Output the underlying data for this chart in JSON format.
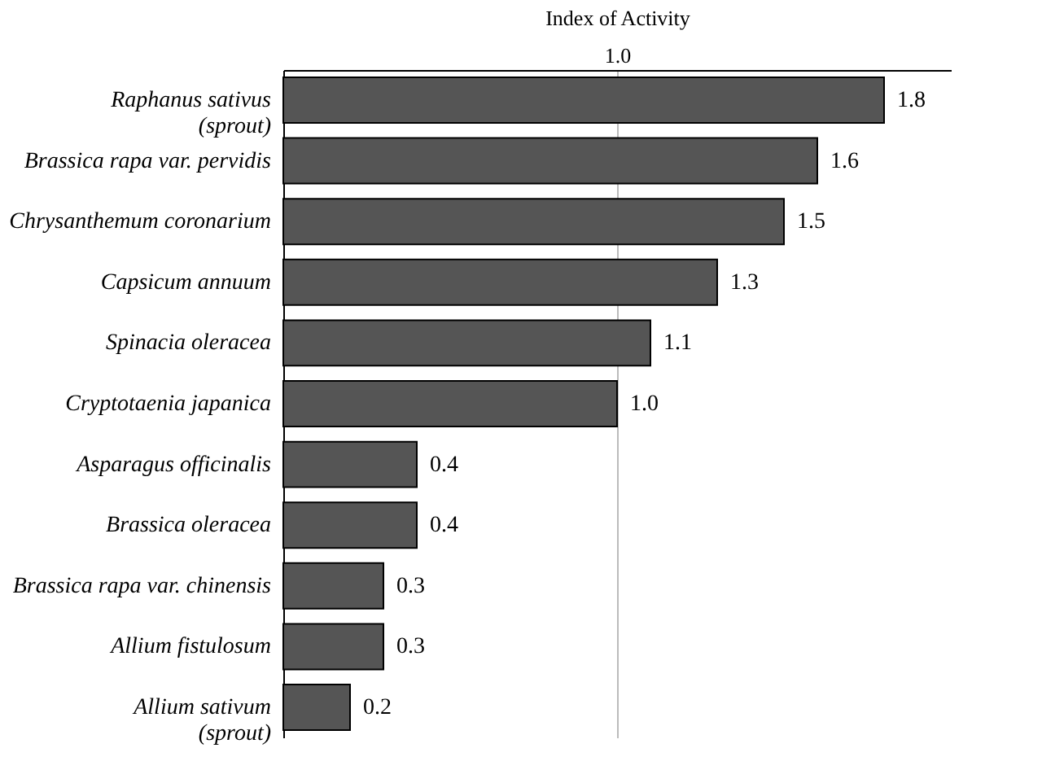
{
  "chart_data": {
    "type": "bar",
    "orientation": "horizontal",
    "xlabel": "Index of Activity",
    "categories": [
      "Raphanus sativus\n(sprout)",
      "Brassica rapa var. pervidis",
      "Chrysanthemum coronarium",
      "Capsicum annuum",
      "Spinacia oleracea",
      "Cryptotaenia japanica",
      "Asparagus officinalis",
      "Brassica oleracea",
      "Brassica rapa var. chinensis",
      "Allium fistulosum",
      "Allium sativum\n(sprout)"
    ],
    "values": [
      1.8,
      1.6,
      1.5,
      1.3,
      1.1,
      1.0,
      0.4,
      0.4,
      0.3,
      0.3,
      0.2
    ],
    "color": "#555555",
    "xlim": [
      0,
      2.0
    ],
    "xticks": [
      {
        "value": 1.0,
        "label": "1.0"
      }
    ],
    "value_labels": [
      "1.8",
      "1.6",
      "1.5",
      "1.3",
      "1.1",
      "1.0",
      "0.4",
      "0.4",
      "0.3",
      "0.3",
      "0.2"
    ],
    "grid": "x"
  }
}
